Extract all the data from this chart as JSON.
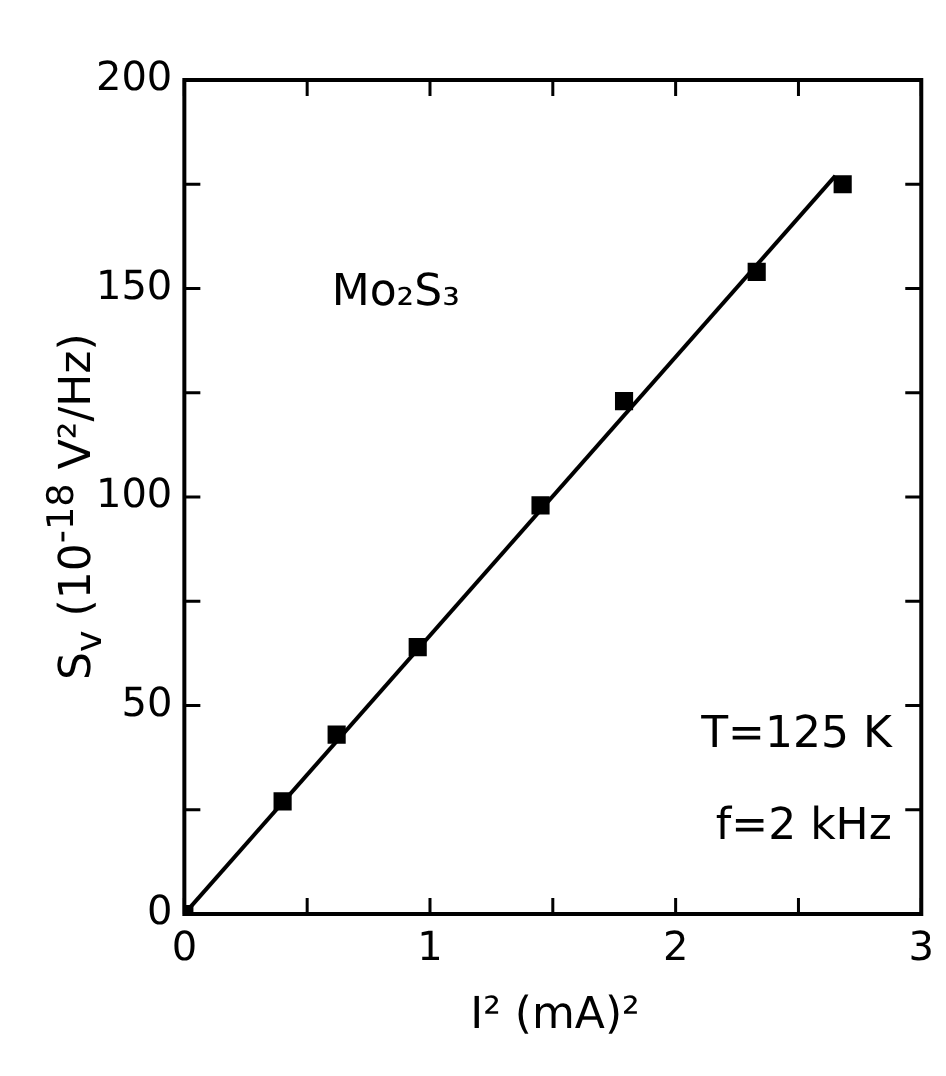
{
  "chart_data": {
    "type": "scatter",
    "xlabel": "I² (mA)²",
    "ylabel": "S$_{v}$ (10$^{-18}$ V²/Hz)",
    "annotations": [
      "Mo₂S₃",
      "T=125 K",
      "f=2 kHz"
    ],
    "xlim": [
      0,
      3
    ],
    "ylim": [
      0,
      200
    ],
    "xticks": [
      0,
      {
        "value": 0.5,
        "label": null
      },
      1,
      {
        "value": 1.5,
        "label": null
      },
      2,
      {
        "value": 2.5,
        "label": null
      },
      3
    ],
    "yticks": [
      0,
      {
        "value": 25,
        "label": null
      },
      50,
      {
        "value": 75,
        "label": null
      },
      100,
      {
        "value": 125,
        "label": null
      },
      150,
      {
        "value": 175,
        "label": null
      },
      200
    ],
    "grid": false,
    "legend": false,
    "marker": "square",
    "series": [
      {
        "color": "#000000",
        "x": [
          0,
          0.4,
          0.62,
          0.95,
          1.45,
          1.79,
          2.33,
          2.68
        ],
        "values": [
          0,
          27,
          43,
          64,
          98,
          123,
          154,
          175
        ]
      },
      {
        "type": "line",
        "color": "#000000",
        "marker": "none",
        "line_style": "solid",
        "x": [
          0,
          2.65
        ],
        "values": [
          0,
          177
        ]
      }
    ]
  }
}
